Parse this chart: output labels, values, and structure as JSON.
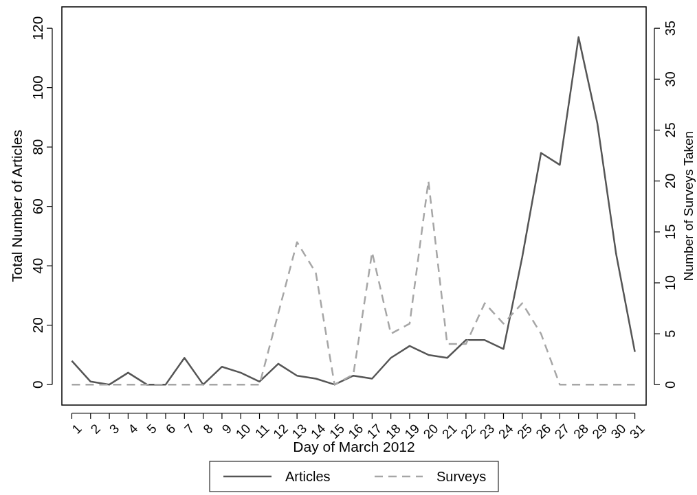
{
  "chart_data": {
    "type": "line",
    "xlabel": "Day of March 2012",
    "ylabel": "Total Number of Articles",
    "y2label": "Number of Surveys Taken",
    "x": [
      1,
      2,
      3,
      4,
      5,
      6,
      7,
      8,
      9,
      10,
      11,
      12,
      13,
      14,
      15,
      16,
      17,
      18,
      19,
      20,
      21,
      22,
      23,
      24,
      25,
      26,
      27,
      28,
      29,
      30,
      31
    ],
    "xlim": [
      0.47,
      31.6
    ],
    "xticks": [
      1,
      2,
      3,
      4,
      5,
      6,
      7,
      8,
      9,
      10,
      11,
      12,
      13,
      14,
      15,
      16,
      17,
      18,
      19,
      20,
      21,
      22,
      23,
      24,
      25,
      26,
      27,
      28,
      29,
      30,
      31
    ],
    "ylim": [
      -6.9,
      127.2
    ],
    "yticks": [
      0,
      20,
      40,
      60,
      80,
      100,
      120
    ],
    "y2lim": [
      -2,
      37.1
    ],
    "y2ticks": [
      0,
      5,
      10,
      15,
      20,
      25,
      30,
      35
    ],
    "series": [
      {
        "name": "Articles",
        "color": "#555555",
        "line_style": "solid",
        "values": [
          8,
          1,
          0,
          4,
          0,
          0,
          9,
          0,
          6,
          4,
          1,
          7,
          3,
          2,
          0,
          3,
          2,
          9,
          13,
          10,
          9,
          15,
          15,
          12,
          43,
          78,
          74,
          117,
          88,
          44,
          11
        ]
      },
      {
        "name": "Surveys",
        "color": "#a6a6a6",
        "line_style": "dashed",
        "axis": "y2",
        "values": [
          0,
          0,
          0,
          0,
          0,
          0,
          0,
          0,
          0,
          0,
          0,
          7,
          14,
          11,
          0,
          1,
          13,
          5,
          6,
          20,
          4,
          4,
          8,
          6,
          8,
          5,
          0,
          0,
          0,
          0,
          0
        ]
      }
    ],
    "grid": false,
    "legend": "bottom"
  }
}
